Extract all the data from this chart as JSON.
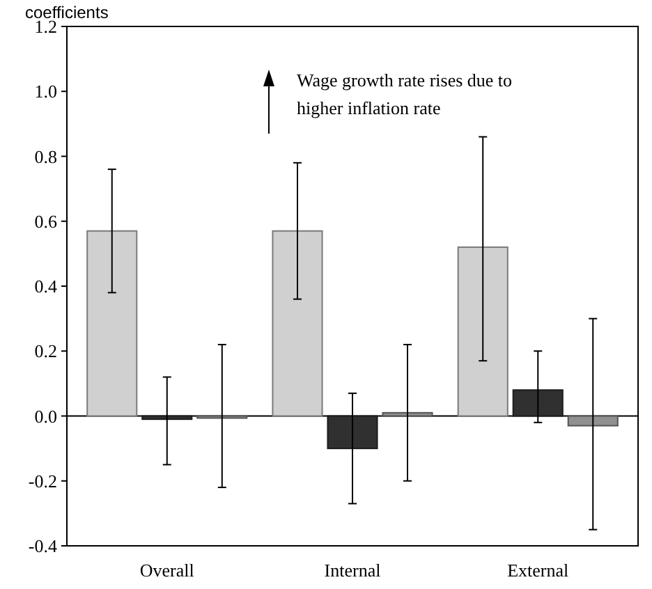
{
  "chart_data": {
    "type": "bar",
    "ylabel": "coefficients",
    "categories": [
      "Overall",
      "Internal",
      "External"
    ],
    "series": [
      {
        "color": "#d0d0d0",
        "values": [
          0.57,
          0.57,
          0.52
        ],
        "errors": [
          [
            0.38,
            0.76
          ],
          [
            0.36,
            0.78
          ],
          [
            0.17,
            0.86
          ]
        ]
      },
      {
        "color": "#303030",
        "values": [
          -0.01,
          -0.1,
          0.08
        ],
        "errors": [
          [
            -0.15,
            0.12
          ],
          [
            -0.27,
            0.07
          ],
          [
            -0.02,
            0.2
          ]
        ]
      },
      {
        "color": "#909090",
        "values": [
          0.0,
          0.01,
          -0.03
        ],
        "errors": [
          [
            -0.22,
            0.22
          ],
          [
            -0.2,
            0.22
          ],
          [
            -0.35,
            0.3
          ]
        ]
      }
    ],
    "ylim": [
      -0.4,
      1.2
    ],
    "yticks": [
      {
        "value": -0.4,
        "label": "-0.4"
      },
      {
        "value": -0.2,
        "label": "-0.2"
      },
      {
        "value": 0,
        "label": "0.0"
      },
      {
        "value": 0.2,
        "label": "0.2"
      },
      {
        "value": 0.4,
        "label": "0.4"
      },
      {
        "value": 0.6,
        "label": "0.6"
      },
      {
        "value": 0.8,
        "label": "0.8"
      },
      {
        "value": 1.0,
        "label": "1.0"
      },
      {
        "value": 1.2,
        "label": "1.2"
      }
    ],
    "ref_lines": [
      {
        "axis": "y",
        "value": 0,
        "color": "#000000"
      }
    ],
    "annotations": [
      "Wage growth rate rises due to\nhigher inflation rate"
    ]
  }
}
